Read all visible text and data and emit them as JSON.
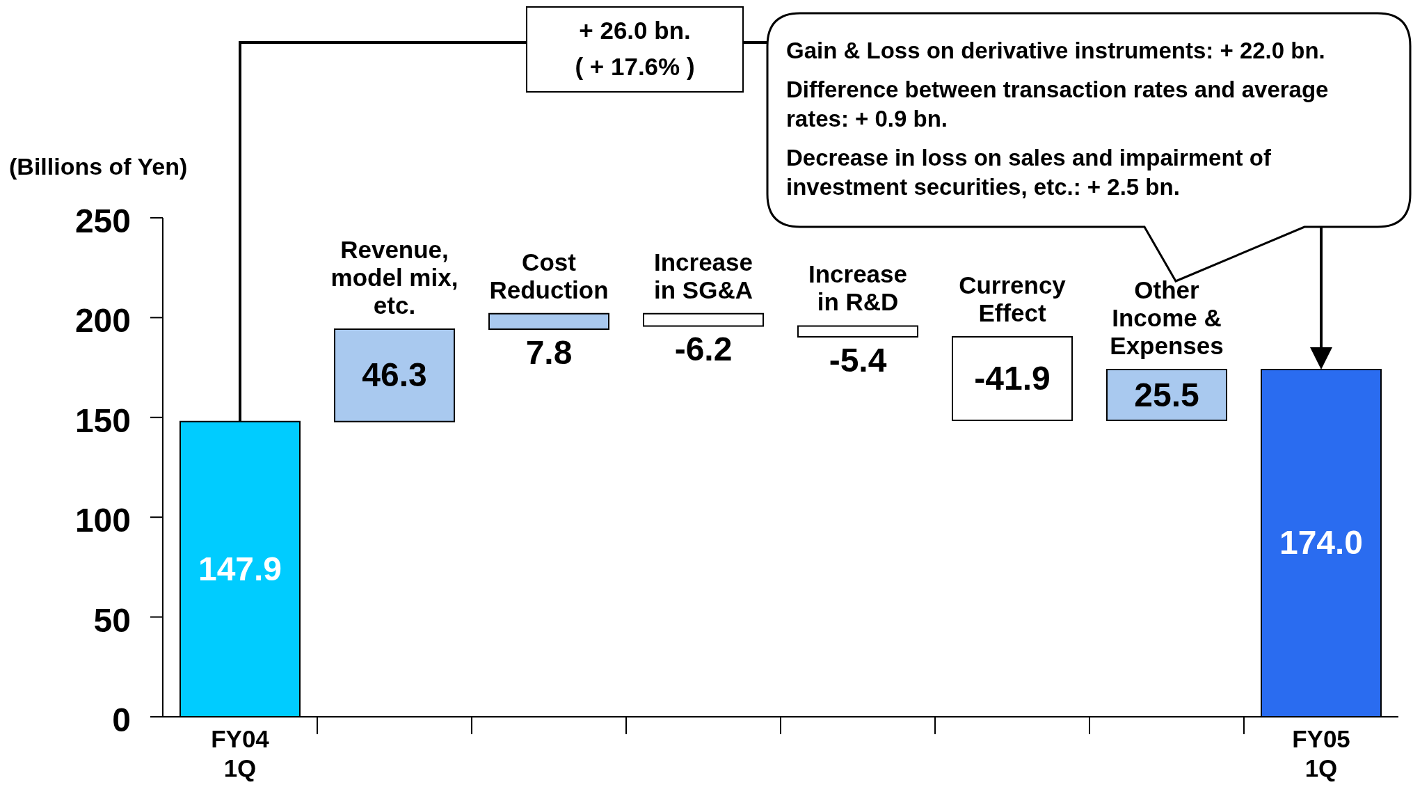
{
  "chart_data": {
    "type": "bar",
    "ylabel": "(Billions of Yen)",
    "categories": [
      "FY04\n1Q",
      "Revenue,\nmodel mix,\netc.",
      "Cost\nReduction",
      "Increase\nin SG&A",
      "Increase\nin R&D",
      "Currency\nEffect",
      "Other\nIncome &\nExpenses",
      "FY05\n1Q"
    ],
    "values": [
      147.9,
      46.3,
      7.8,
      -6.2,
      -5.4,
      -41.9,
      25.5,
      174.0
    ],
    "base": [
      0,
      147.9,
      194.2,
      202.0,
      195.8,
      190.4,
      148.5,
      0
    ],
    "colors": [
      "#00ccff",
      "#a9c9ef",
      "#a9c9ef",
      "#ffffff",
      "#ffffff",
      "#ffffff",
      "#a9c9ef",
      "#2a6cf0"
    ],
    "value_labels": [
      "147.9",
      "46.3",
      "7.8",
      "-6.2",
      "-5.4",
      "-41.9",
      "25.5",
      "174.0"
    ],
    "ylim": [
      0,
      250
    ],
    "yticks": [
      0,
      50,
      100,
      150,
      200,
      250
    ],
    "annotations": [
      "+ 26.0 bn.\n( + 17.6% )",
      "Gain & Loss on derivative instruments: + 22.0 bn.",
      "Difference between transaction rates and average rates: + 0.9 bn.",
      "Decrease in loss on sales and impairment of investment  securities, etc.: + 2.5 bn."
    ]
  }
}
